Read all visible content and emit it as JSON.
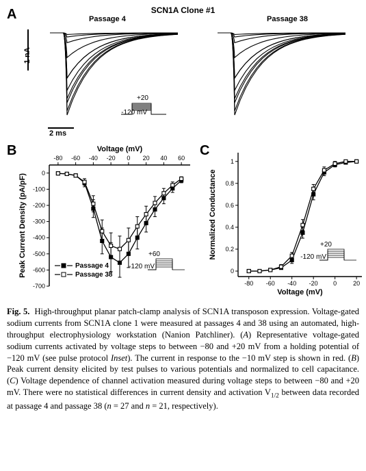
{
  "figure_number": "Fig. 5.",
  "title": "SCN1A Clone #1",
  "panelA": {
    "label": "A",
    "left_title": "Passage 4",
    "right_title": "Passage 38",
    "scalebar_y": "1 nA",
    "scalebar_x": "2 ms",
    "protocol_top": "+20",
    "protocol_bottom": "-120 mV",
    "traces_left": {
      "type": "current_traces",
      "n_traces": 11,
      "peak_amplitudes_rel": [
        0.02,
        0.05,
        0.12,
        0.3,
        0.55,
        0.8,
        1.0,
        0.95,
        0.85,
        0.7,
        0.55
      ],
      "peak_time_ms": 0.8,
      "decay_tau_ms": 1.0,
      "stroke_color": "#000000",
      "stroke_width": 1.1,
      "highlight_index": 7,
      "highlight_color": "#c00000"
    },
    "traces_right": {
      "type": "current_traces",
      "n_traces": 11,
      "peak_amplitudes_rel": [
        0.02,
        0.05,
        0.12,
        0.3,
        0.55,
        0.8,
        1.0,
        0.95,
        0.85,
        0.7,
        0.55
      ],
      "peak_time_ms": 0.8,
      "decay_tau_ms": 1.0,
      "stroke_color": "#000000",
      "stroke_width": 1.1,
      "highlight_index": 7,
      "highlight_color": "#c00000"
    }
  },
  "panelB": {
    "label": "B",
    "type": "line_scatter",
    "x_label": "Voltage (mV)",
    "y_label": "Peak Current Density (pA/pF)",
    "xlim": [
      -90,
      70
    ],
    "ylim": [
      -700,
      50
    ],
    "xticks": [
      -80,
      -60,
      -40,
      -20,
      0,
      20,
      40,
      60
    ],
    "yticks": [
      0,
      -100,
      -200,
      -300,
      -400,
      -500,
      -600,
      -700
    ],
    "axis_color": "#000000",
    "axis_width": 1.4,
    "tick_fontsize": 9,
    "label_fontsize": 11,
    "series": [
      {
        "name": "Passage 4",
        "legend_label": "Passage 4",
        "marker": "square_filled",
        "marker_size": 5,
        "color": "#000000",
        "line_width": 1.3,
        "x": [
          -80,
          -70,
          -60,
          -50,
          -40,
          -30,
          -20,
          -10,
          0,
          10,
          20,
          30,
          40,
          50,
          60
        ],
        "y": [
          -2,
          -5,
          -15,
          -60,
          -220,
          -420,
          -520,
          -555,
          -500,
          -400,
          -310,
          -225,
          -155,
          -95,
          -45
        ],
        "err": [
          5,
          5,
          10,
          25,
          55,
          80,
          90,
          90,
          85,
          70,
          55,
          45,
          35,
          25,
          15
        ]
      },
      {
        "name": "Passage 38",
        "legend_label": "Passage 38",
        "marker": "square_open",
        "marker_size": 5,
        "color": "#000000",
        "line_width": 1.3,
        "x": [
          -80,
          -70,
          -60,
          -50,
          -40,
          -30,
          -20,
          -10,
          0,
          10,
          20,
          30,
          40,
          50,
          60
        ],
        "y": [
          -2,
          -5,
          -15,
          -55,
          -190,
          -360,
          -450,
          -470,
          -415,
          -330,
          -255,
          -185,
          -125,
          -75,
          -35
        ],
        "err": [
          5,
          5,
          10,
          20,
          50,
          70,
          80,
          80,
          75,
          60,
          50,
          40,
          30,
          20,
          12
        ]
      }
    ],
    "legend_pos": "bottom-left",
    "protocol_top": "+60",
    "protocol_bottom": "-120 mV"
  },
  "panelC": {
    "label": "C",
    "type": "line_scatter",
    "x_label": "Voltage (mV)",
    "y_label": "Normalized Conductance",
    "xlim": [
      -90,
      25
    ],
    "ylim": [
      -0.05,
      1.08
    ],
    "xticks": [
      -80,
      -60,
      -40,
      -20,
      0,
      20
    ],
    "yticks": [
      0.0,
      0.2,
      0.4,
      0.6,
      0.8,
      1.0
    ],
    "axis_color": "#000000",
    "axis_width": 1.4,
    "tick_fontsize": 9,
    "label_fontsize": 11,
    "series": [
      {
        "name": "Passage 4",
        "marker": "square_filled",
        "marker_size": 5,
        "color": "#000000",
        "line_width": 1.3,
        "x": [
          -80,
          -70,
          -60,
          -50,
          -40,
          -30,
          -20,
          -10,
          0,
          10,
          20
        ],
        "y": [
          0.0,
          0.0,
          0.01,
          0.03,
          0.1,
          0.35,
          0.7,
          0.9,
          0.97,
          0.99,
          1.0
        ],
        "err": [
          0.0,
          0.0,
          0.01,
          0.01,
          0.03,
          0.05,
          0.05,
          0.03,
          0.02,
          0.01,
          0.01
        ]
      },
      {
        "name": "Passage 38",
        "marker": "square_open",
        "marker_size": 5,
        "color": "#000000",
        "line_width": 1.3,
        "x": [
          -80,
          -70,
          -60,
          -50,
          -40,
          -30,
          -20,
          -10,
          0,
          10,
          20
        ],
        "y": [
          0.0,
          0.0,
          0.01,
          0.04,
          0.14,
          0.42,
          0.75,
          0.92,
          0.98,
          1.0,
          1.0
        ],
        "err": [
          0.0,
          0.0,
          0.01,
          0.02,
          0.03,
          0.05,
          0.04,
          0.03,
          0.02,
          0.01,
          0.01
        ]
      }
    ],
    "protocol_top": "+20",
    "protocol_bottom": "-120 mV"
  },
  "caption": {
    "lead": "Fig. 5.",
    "text_1": "High-throughput planar patch-clamp analysis of SCN1A transposon expression. Voltage-gated sodium currents from SCN1A clone 1 were measured at passages 4 and 38 using an automated, high-throughput electrophysiology workstation (Nanion Patchliner). (",
    "A": "A",
    "text_2": ") Representative voltage-gated sodium currents activated by voltage steps to between −80 and +20 mV from a holding potential of −120 mV (see pulse protocol ",
    "inset": "Inset",
    "text_3": "). The current in response to the −10 mV step is shown in red. (",
    "B": "B",
    "text_4": ") Peak current density elicited by test pulses to various potentials and normalized to cell capacitance. (",
    "C": "C",
    "text_5": ") Voltage dependence of channel activation measured during voltage steps to between −80 and +20 mV. There were no statistical differences in current density and activation V",
    "sub": "1/2",
    "text_6": " between data recorded at passage 4 and passage 38 (",
    "n1": "n",
    "text_7": " = 27 and ",
    "n2": "n",
    "text_8": " = 21, respectively)."
  }
}
